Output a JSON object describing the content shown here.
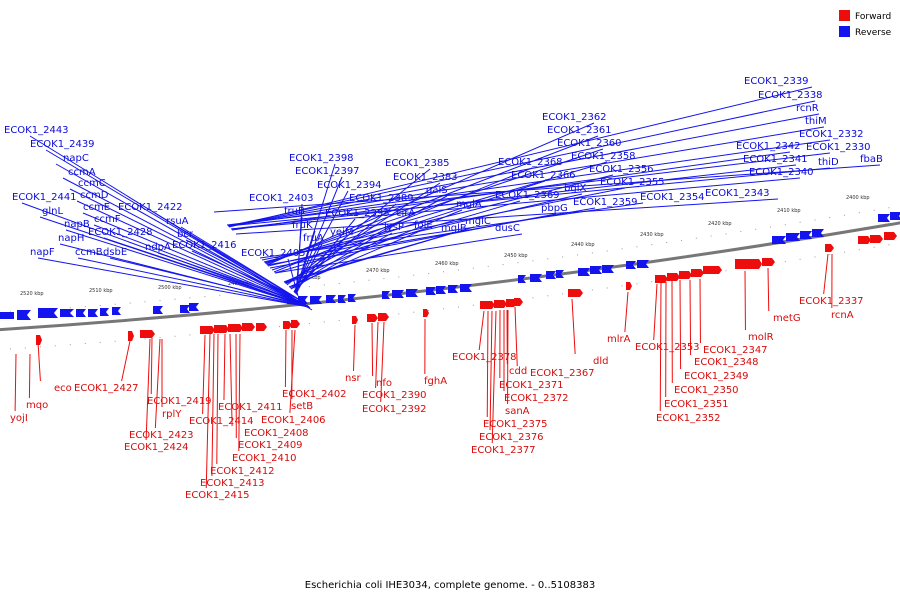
{
  "colors": {
    "forward": "#ee0d0d",
    "reverse": "#1414ee",
    "axis": "#888888"
  },
  "legend": {
    "forward": "Forward",
    "reverse": "Reverse"
  },
  "caption": "Escherichia coli IHE3034, complete genome. - 0..5108383",
  "ticks": [
    "2520 kbp",
    "2510 kbp",
    "2500 kbp",
    "2490 kbp",
    "2480 kbp",
    "2470 kbp",
    "2460 kbp",
    "2450 kbp",
    "2440 kbp",
    "2430 kbp",
    "2420 kbp",
    "2410 kbp",
    "2400 kbp"
  ],
  "reverse_labels": [
    "ECOK1_2443",
    "ECOK1_2439",
    "napC",
    "ccmA",
    "ccmC",
    "ccmD",
    "ECOK1_2441",
    "ccmE",
    "glnL",
    "napB",
    "ccmF",
    "napH",
    "ECOK1_2428",
    "napF",
    "ccmB",
    "dsbE",
    "ECOK1_2422",
    "rsuA",
    "bcr",
    "ndpA",
    "ECOK1_2416",
    "ECOK1_2398",
    "ECOK1_2397",
    "ECOK1_2394",
    "ECOK1_2403",
    "fruB",
    "ECOK1_2393",
    "fruK",
    "yeiM",
    "fruA",
    "ECOK1_2405",
    "ECOK1_2385",
    "ECOK1_2383",
    "galS",
    "ECOK1_2389",
    "mglA",
    "cirA",
    "lysP",
    "folE",
    "mglB",
    "mglC",
    "ECOK1_2362",
    "ECOK1_2361",
    "ECOK1_2360",
    "ECOK1_2368",
    "ECOK1_2358",
    "ECOK1_2366",
    "ECOK1_2356",
    "bglX",
    "ECOK1_2355",
    "ECOK1_2369",
    "pbpG",
    "ECOK1_2359",
    "ECOK1_2354",
    "dusC",
    "ECOK1_2339",
    "ECOK1_2338",
    "rcnR",
    "thiM",
    "ECOK1_2332",
    "ECOK1_2342",
    "ECOK1_2330",
    "ECOK1_2341",
    "thiD",
    "fbaB",
    "ECOK1_2340",
    "ECOK1_2343"
  ],
  "forward_labels": [
    "eco",
    "ECOK1_2427",
    "mqo",
    "yojI",
    "ECOK1_2419",
    "rplY",
    "ECOK1_2423",
    "ECOK1_2424",
    "ECOK1_2414",
    "ECOK1_2411",
    "ECOK1_2408",
    "ECOK1_2409",
    "ECOK1_2410",
    "ECOK1_2412",
    "ECOK1_2413",
    "ECOK1_2415",
    "ECOK1_2402",
    "setB",
    "ECOK1_2406",
    "nsr",
    "nfo",
    "ECOK1_2390",
    "ECOK1_2392",
    "fghA",
    "ECOK1_2378",
    "cdd",
    "ECOK1_2371",
    "ECOK1_2372",
    "sanA",
    "ECOK1_2375",
    "ECOK1_2376",
    "ECOK1_2377",
    "ECOK1_2367",
    "dld",
    "mlrA",
    "ECOK1_2353",
    "ECOK1_2347",
    "ECOK1_2348",
    "ECOK1_2349",
    "ECOK1_2350",
    "ECOK1_2351",
    "ECOK1_2352",
    "molR",
    "metG",
    "ECOK1_2337",
    "rcnA"
  ]
}
